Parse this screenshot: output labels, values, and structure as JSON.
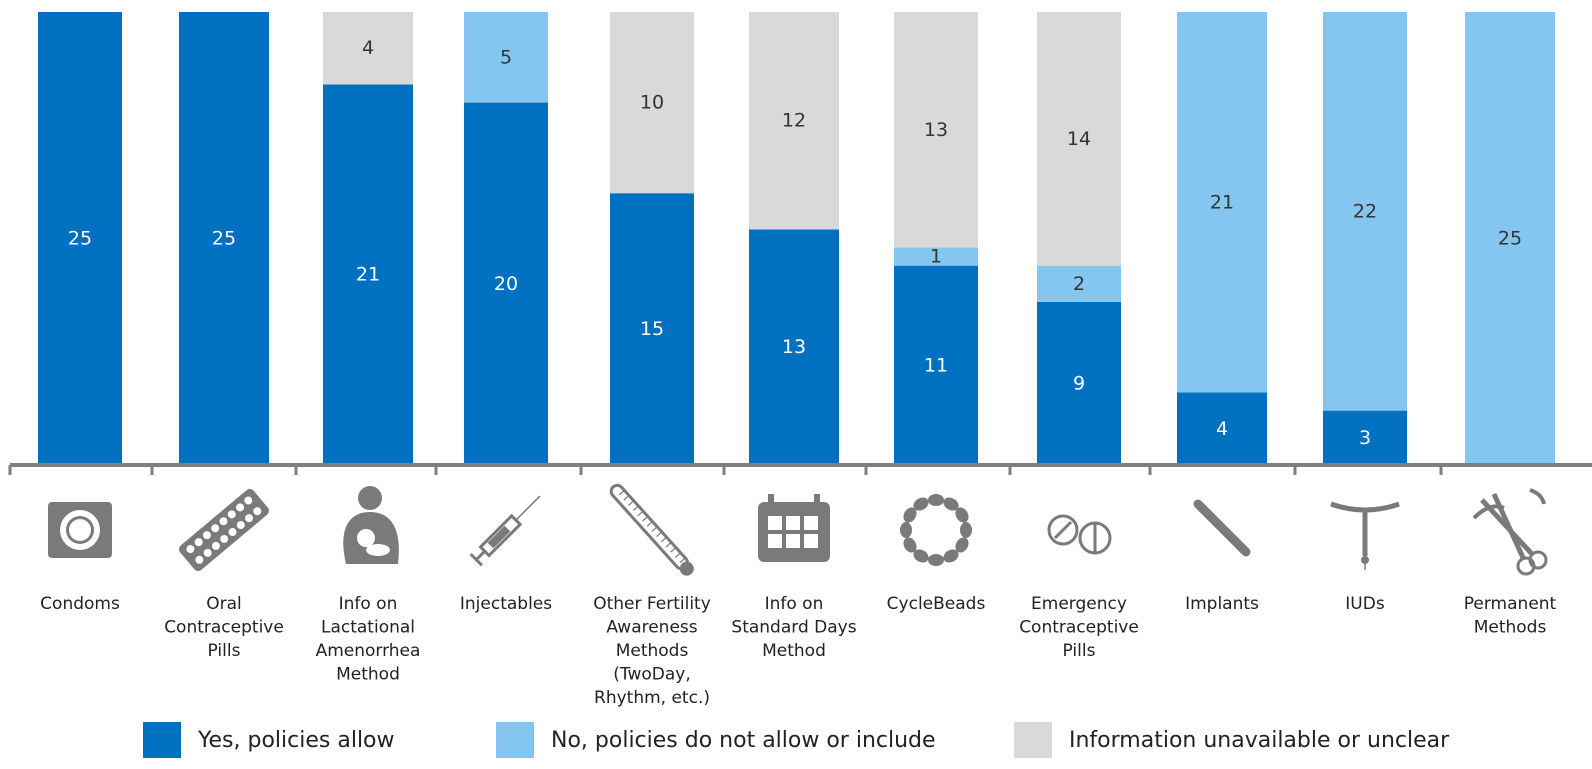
{
  "chart_data": {
    "type": "bar",
    "stacked": true,
    "categories": [
      "Condoms",
      "Oral Contraceptive Pills",
      "Info on Lactational Amenorrhea Method",
      "Injectables",
      "Other Fertility Awareness Methods (TwoDay, Rhythm, etc.)",
      "Info on Standard Days Method",
      "CycleBeads",
      "Emergency Contraceptive Pills",
      "Implants",
      "IUDs",
      "Permanent Methods"
    ],
    "category_lines": [
      [
        "Condoms"
      ],
      [
        "Oral",
        "Contraceptive",
        "Pills"
      ],
      [
        "Info on",
        "Lactational",
        "Amenorrhea",
        "Method"
      ],
      [
        "Injectables"
      ],
      [
        "Other Fertility",
        "Awareness",
        "Methods",
        "(TwoDay,",
        "Rhythm, etc.)"
      ],
      [
        "Info on",
        "Standard Days",
        "Method"
      ],
      [
        "CycleBeads"
      ],
      [
        "Emergency",
        "Contraceptive",
        "Pills"
      ],
      [
        "Implants"
      ],
      [
        "IUDs"
      ],
      [
        "Permanent",
        "Methods"
      ]
    ],
    "icons": [
      "condom-icon",
      "pill-pack-icon",
      "breastfeeding-icon",
      "syringe-icon",
      "thermometer-icon",
      "calendar-icon",
      "beads-icon",
      "ec-pills-icon",
      "implant-icon",
      "iud-icon",
      "scissors-icon"
    ],
    "series": [
      {
        "name": "Yes, policies allow",
        "color": "#0070c0",
        "values": [
          25,
          25,
          21,
          20,
          15,
          13,
          11,
          9,
          4,
          3,
          0
        ]
      },
      {
        "name": "No, policies do not allow or include",
        "color": "#84c6f0",
        "values": [
          0,
          0,
          0,
          5,
          0,
          0,
          1,
          2,
          21,
          22,
          25
        ]
      },
      {
        "name": "Information unavailable or unclear",
        "color": "#d9d9d9",
        "values": [
          0,
          0,
          4,
          0,
          10,
          12,
          13,
          14,
          0,
          0,
          0
        ]
      }
    ],
    "ylim": [
      0,
      25
    ],
    "grid": false,
    "legend_position": "bottom"
  }
}
